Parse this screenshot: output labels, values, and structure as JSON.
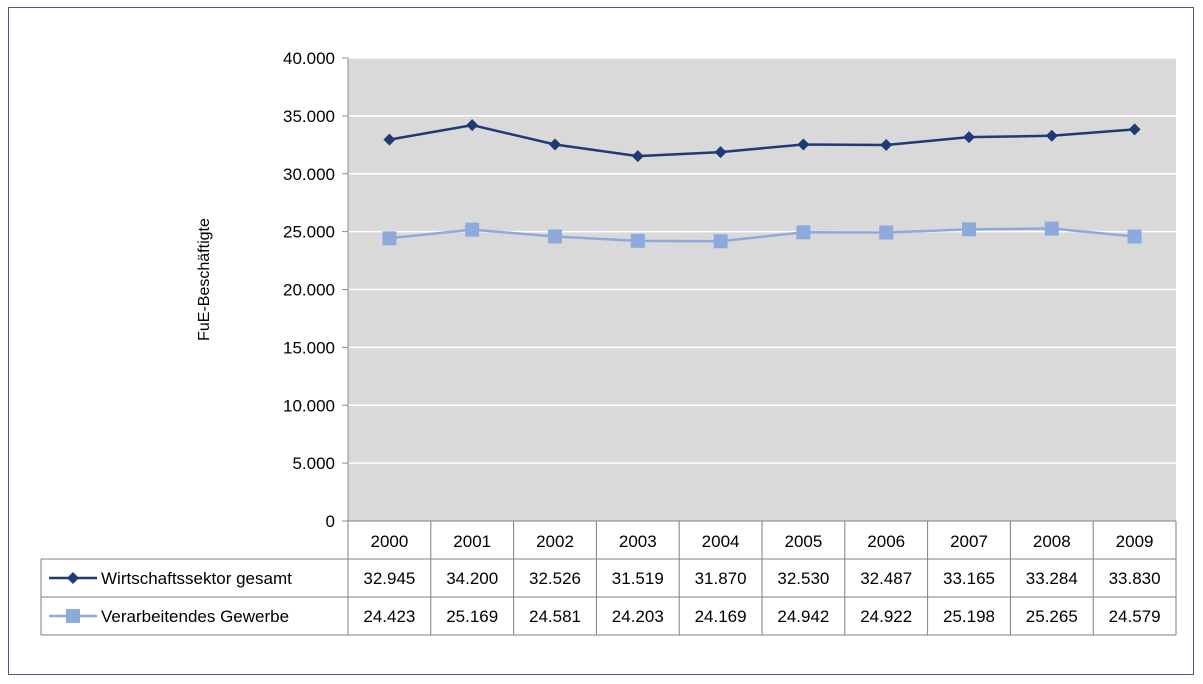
{
  "chart_data": {
    "type": "line",
    "ylabel": "FuE-Beschäftigte",
    "xlabel": "",
    "title": "",
    "ylim": [
      0,
      40000
    ],
    "yticks": [
      "0",
      "5.000",
      "10.000",
      "15.000",
      "20.000",
      "25.000",
      "30.000",
      "35.000",
      "40.000"
    ],
    "categories": [
      "2000",
      "2001",
      "2002",
      "2003",
      "2004",
      "2005",
      "2006",
      "2007",
      "2008",
      "2009"
    ],
    "grid": true,
    "legend": "data-table",
    "plot_background": "#d9d9d9",
    "series": [
      {
        "name": "Wirtschaftssektor gesamt",
        "color": "#1f3a75",
        "marker": "diamond",
        "values": [
          32945,
          34200,
          32526,
          31519,
          31870,
          32530,
          32487,
          33165,
          33284,
          33830
        ],
        "labels": [
          "32.945",
          "34.200",
          "32.526",
          "31.519",
          "31.870",
          "32.530",
          "32.487",
          "33.165",
          "33.284",
          "33.830"
        ]
      },
      {
        "name": "Verarbeitendes Gewerbe",
        "color": "#8eaadc",
        "marker": "square",
        "values": [
          24423,
          25169,
          24581,
          24203,
          24169,
          24942,
          24922,
          25198,
          25265,
          24579
        ],
        "labels": [
          "24.423",
          "25.169",
          "24.581",
          "24.203",
          "24.169",
          "24.942",
          "24.922",
          "25.198",
          "25.265",
          "24.579"
        ]
      }
    ]
  }
}
